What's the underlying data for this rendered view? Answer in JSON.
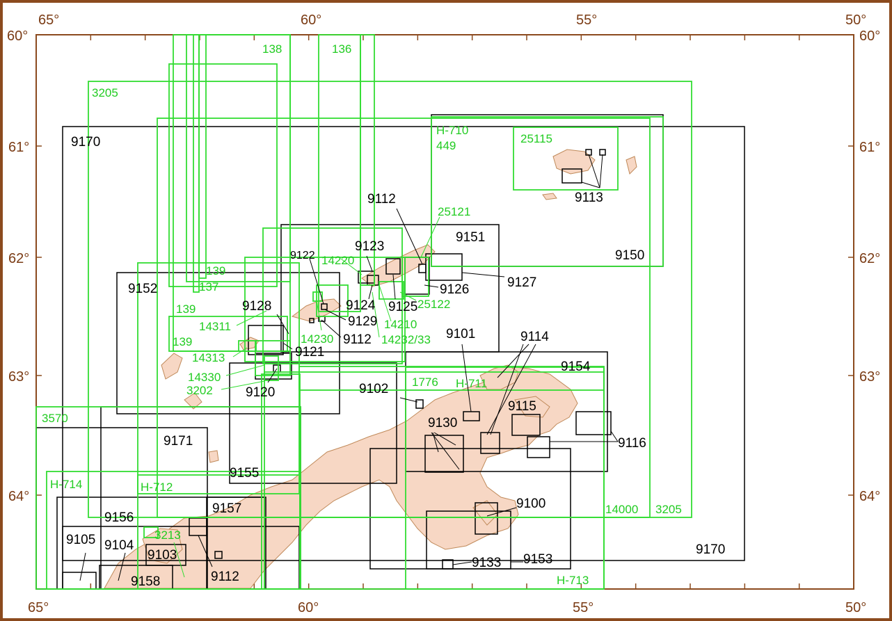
{
  "colors": {
    "frame": "#8b4a1e",
    "land": "#f7d7c4",
    "land_edge": "#c08a5a",
    "black_chart": "#000000",
    "green_chart": "#33dd33"
  },
  "axes": {
    "top_lon": [
      "65°",
      "60°",
      "55°",
      "50°"
    ],
    "bottom_lon": [
      "65°",
      "60°",
      "55°",
      "50°"
    ],
    "left_lat": [
      "60°",
      "61°",
      "62°",
      "63°",
      "64°"
    ],
    "right_lat": [
      "60°",
      "61°",
      "62°",
      "63°",
      "64°"
    ]
  },
  "black_labels": {
    "c9170a": "9170",
    "c9170b": "9170",
    "c9112a": "9112",
    "c9151": "9151",
    "c9150": "9150",
    "c9113": "9113",
    "c9123": "9123",
    "c9127": "9127",
    "c9126": "9126",
    "c9125": "9125",
    "c9124": "9124",
    "c9122": "9122",
    "c9152": "9152",
    "c9128": "9128",
    "c9129": "9129",
    "c9112b": "9112",
    "c9121": "9121",
    "c9101": "9101",
    "c9114": "9114",
    "c9154": "9154",
    "c9120": "9120",
    "c9102": "9102",
    "c9115": "9115",
    "c9116": "9116",
    "c9130": "9130",
    "c9171": "9171",
    "c9155": "9155",
    "c9100": "9100",
    "c9157": "9157",
    "c9156": "9156",
    "c9105": "9105",
    "c9104": "9104",
    "c9103": "9103",
    "c9133": "9133",
    "c9153": "9153",
    "c9112c": "9112",
    "c9158": "9158"
  },
  "green_labels": {
    "g138": "138",
    "g136": "136",
    "g3205a": "3205",
    "gH710": "H-710",
    "g449": "449",
    "g25115": "25115",
    "g25121": "25121",
    "g14220": "14220",
    "g139a": "139",
    "g137": "137",
    "g139b": "139",
    "g25122": "25122",
    "g14311": "14311",
    "g14210": "14210",
    "g14230": "14230",
    "g14232": "14232/33",
    "g139c": "139",
    "g14313": "14313",
    "g14330": "14330",
    "g3202": "3202",
    "g1776": "1776",
    "gH711": "H-711",
    "g3570": "3570",
    "gH714": "H-714",
    "gH712": "H-712",
    "g3213": "3213",
    "g14000": "14000",
    "g3205b": "3205",
    "gH713": "H-713"
  }
}
